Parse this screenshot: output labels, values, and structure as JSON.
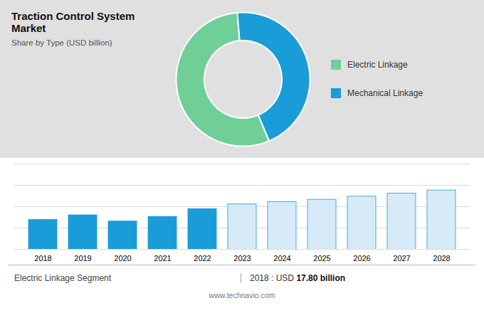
{
  "chart_data": [
    {
      "type": "pie",
      "title": "Traction Control System Market",
      "subtitle": "Share by Type (USD billion)",
      "categories": [
        "Electric Linkage",
        "Mechanical Linkage"
      ],
      "values": [
        55,
        45
      ],
      "colors": [
        "#6fcf97",
        "#1a9cd8"
      ],
      "legend": "right"
    },
    {
      "type": "bar",
      "categories": [
        "2018",
        "2019",
        "2020",
        "2021",
        "2022",
        "2023",
        "2024",
        "2025",
        "2026",
        "2027",
        "2028"
      ],
      "values": [
        17.8,
        18.4,
        17.6,
        18.2,
        19.2,
        19.8,
        20.1,
        20.4,
        20.8,
        21.2,
        21.6
      ],
      "colors": [
        "#1a9cd8",
        "#1a9cd8",
        "#1a9cd8",
        "#1a9cd8",
        "#1a9cd8",
        "#d6eaf8",
        "#d6eaf8",
        "#d6eaf8",
        "#d6eaf8",
        "#d6eaf8",
        "#d6eaf8"
      ],
      "ylim": [
        14.0,
        25.0
      ],
      "yticks": [
        14.0,
        16.75,
        19.5,
        22.25,
        25.0
      ],
      "grid": true,
      "tick_labels": "x",
      "annotations": [
        "Electric Linkage Segment",
        "2018 : USD ",
        "17.80 billion",
        "www.technavio.com"
      ]
    }
  ]
}
